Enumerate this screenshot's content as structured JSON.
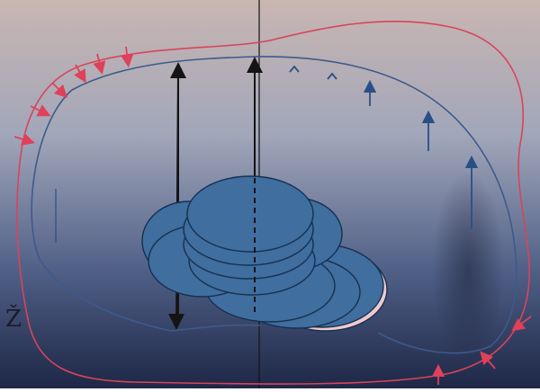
{
  "figure": {
    "corner_label": "Ž"
  },
  "colors": {
    "background_top": "#c7b6b3",
    "background_mid": "#8b95ad",
    "background_bottom": "#26304e",
    "outer_boundary": "#d9445a",
    "inner_boundary": "#3d5a8c",
    "disc_fill": "#3f6e9f",
    "disc_stroke": "#17304f",
    "disc_highlight": "#f0c9cf",
    "arrow_red": "#e0405a",
    "arrow_blue": "#2a4f86",
    "arrow_black": "#141414"
  }
}
